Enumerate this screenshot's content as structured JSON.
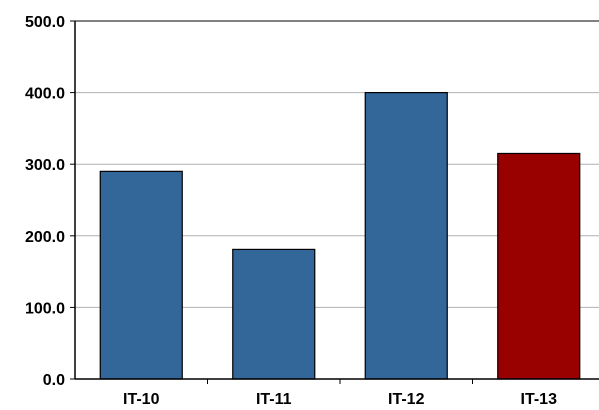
{
  "chart_data": {
    "type": "bar",
    "title": "",
    "xlabel": "",
    "ylabel": "",
    "categories": [
      "IT-10",
      "IT-11",
      "IT-12",
      "IT-13"
    ],
    "values": [
      290,
      181,
      400,
      315
    ],
    "bar_colors": [
      "#336699",
      "#336699",
      "#336699",
      "#990000"
    ],
    "ylim": [
      0,
      500
    ],
    "yticks": [
      0,
      100,
      200,
      300,
      400,
      500
    ],
    "ytick_labels": [
      "0.0",
      "100.0",
      "200.0",
      "300.0",
      "400.0",
      "500.0"
    ],
    "grid": true,
    "legend": "none"
  }
}
